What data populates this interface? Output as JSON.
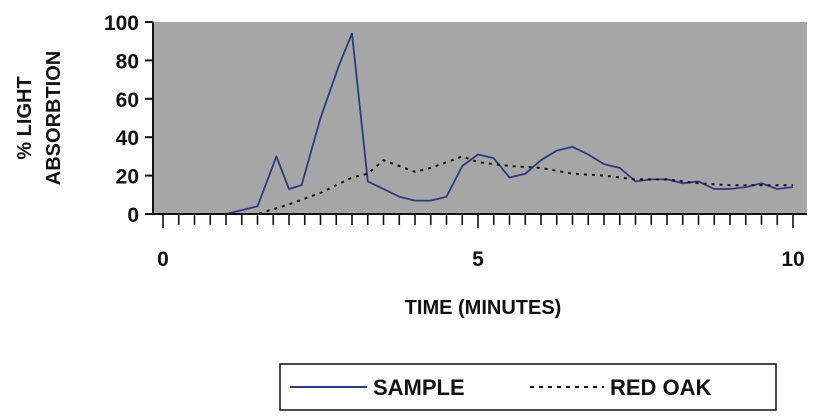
{
  "chart_data": {
    "type": "line",
    "xlabel": "TIME (MINUTES)",
    "ylabel_lines": [
      "% LIGHT",
      "ABSORBTION"
    ],
    "xlim": [
      0,
      10
    ],
    "ylim": [
      0,
      100
    ],
    "x_ticks": [
      0,
      5,
      10
    ],
    "y_ticks": [
      0,
      20,
      40,
      60,
      80,
      100
    ],
    "x_minor_step": 0.25,
    "grid": false,
    "plot_background": "#a6a6a6",
    "legend_position": "bottom-right",
    "series": [
      {
        "name": "SAMPLE",
        "style": "solid",
        "color": "#2e3a80",
        "x": [
          0,
          1.0,
          1.5,
          1.8,
          2.0,
          2.2,
          2.5,
          2.8,
          3.0,
          3.25,
          3.5,
          3.75,
          4.0,
          4.25,
          4.5,
          4.75,
          5.0,
          5.25,
          5.5,
          5.75,
          6.0,
          6.25,
          6.5,
          6.75,
          7.0,
          7.25,
          7.5,
          7.75,
          8.0,
          8.25,
          8.5,
          8.75,
          9.0,
          9.25,
          9.5,
          9.75,
          10.0
        ],
        "y": [
          0,
          0,
          4,
          30,
          13,
          15,
          50,
          78,
          94,
          17,
          13,
          9,
          7,
          7,
          9,
          25,
          31,
          29,
          19,
          21,
          28,
          33,
          35,
          31,
          26,
          24,
          17,
          18,
          18,
          16,
          17,
          13,
          13,
          14,
          16,
          13,
          14
        ]
      },
      {
        "name": "RED OAK",
        "style": "dotted",
        "color": "#111111",
        "x": [
          0,
          1.5,
          2.0,
          2.5,
          3.0,
          3.25,
          3.5,
          3.75,
          4.0,
          4.25,
          4.5,
          4.75,
          5.0,
          5.5,
          6.0,
          6.5,
          7.0,
          7.5,
          8.0,
          8.5,
          9.0,
          9.5,
          10.0
        ],
        "y": [
          0,
          0,
          5,
          11,
          19,
          21,
          28,
          25,
          22,
          24,
          27,
          30,
          27,
          25,
          24,
          21,
          20,
          18,
          18,
          16,
          15,
          15,
          15
        ]
      }
    ]
  }
}
